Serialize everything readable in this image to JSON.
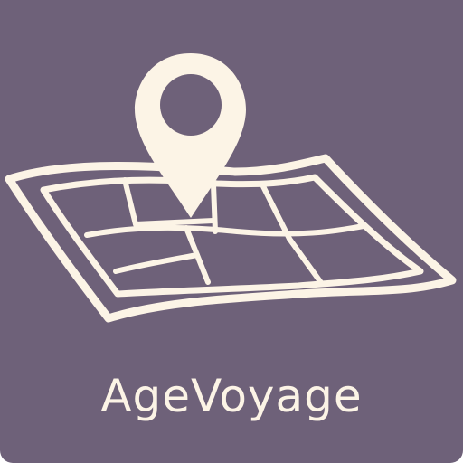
{
  "app": {
    "name": "AgeVoyage"
  },
  "icons": {
    "map": "folded-map-icon",
    "pin": "location-pin-icon"
  },
  "colors": {
    "background": "#6e6179",
    "foreground": "#fcf4e6"
  }
}
